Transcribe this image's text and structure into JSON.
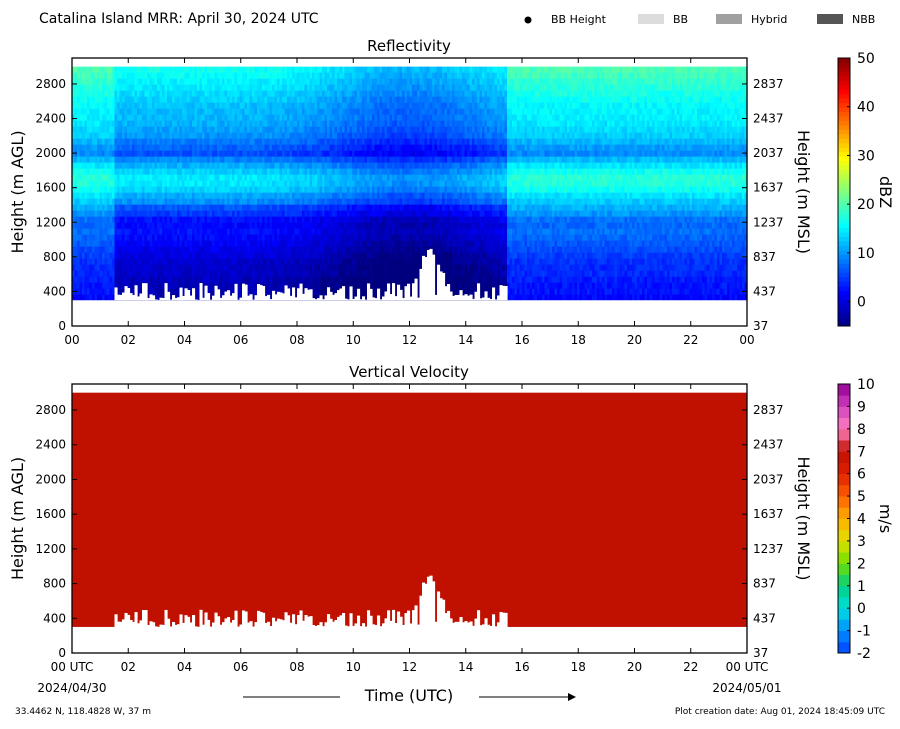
{
  "header": {
    "title": "Catalina Island MRR:  April 30, 2024 UTC",
    "legend": [
      {
        "label": "BB Height",
        "kind": "dot",
        "color": "#000000"
      },
      {
        "label": "BB",
        "kind": "box",
        "color": "#dcdcdc"
      },
      {
        "label": "Hybrid",
        "kind": "box",
        "color": "#a0a0a0"
      },
      {
        "label": "NBB",
        "kind": "box",
        "color": "#555555"
      }
    ]
  },
  "footer": {
    "location": "33.4462 N, 118.4828 W, 37 m",
    "creation": "Plot creation date: Aug 01, 2024 18:45:09 UTC",
    "time_label": "Time (UTC)",
    "start_date": "2024/04/30",
    "end_date": "2024/05/01"
  },
  "chart_data": [
    {
      "type": "heatmap",
      "title": "Reflectivity",
      "ylabel": "Height (m AGL)",
      "y2label": "Height (m MSL)",
      "xlabel": "",
      "x_ticks": [
        "00",
        "02",
        "04",
        "06",
        "08",
        "10",
        "12",
        "14",
        "16",
        "18",
        "20",
        "22",
        "00"
      ],
      "y_ticks": [
        0,
        400,
        800,
        1200,
        1600,
        2000,
        2400,
        2800
      ],
      "y2_ticks": [
        37,
        437,
        837,
        1237,
        1637,
        2037,
        2437,
        2837
      ],
      "xlim": [
        0,
        24
      ],
      "ylim": [
        0,
        3100
      ],
      "data_top": 3000,
      "data_base": 300,
      "colorbar": {
        "label": "dBZ",
        "min": -5,
        "max": 50,
        "ticks": [
          0,
          10,
          20,
          30,
          40,
          50
        ],
        "colors": [
          "#00007f",
          "#0000ff",
          "#0080ff",
          "#00ffff",
          "#80ff80",
          "#ffff00",
          "#ff8000",
          "#ff0000",
          "#7f0000"
        ]
      },
      "profile_by_height": {
        "heights": [
          300,
          400,
          500,
          600,
          700,
          800,
          900,
          1000,
          1100,
          1200,
          1300,
          1400,
          1500,
          1600,
          1700,
          1800,
          1900,
          2000,
          2100,
          2200,
          2300,
          2400,
          2500,
          2600,
          2700,
          2800,
          2900,
          3000
        ],
        "dbz": [
          2,
          3,
          3,
          4,
          4,
          5,
          6,
          7,
          8,
          7,
          10,
          12,
          14,
          17,
          18,
          16,
          13,
          9,
          11,
          13,
          14,
          15,
          15,
          16,
          17,
          18,
          19,
          20
        ]
      },
      "precip_period": [
        1.5,
        15.5
      ],
      "precip_peak": {
        "time": 12.7,
        "height": 880
      }
    },
    {
      "type": "heatmap",
      "title": "Vertical Velocity",
      "ylabel": "Height (m AGL)",
      "y2label": "Height (m MSL)",
      "xlabel": "Time (UTC)",
      "x_ticks": [
        "00 UTC",
        "02",
        "04",
        "06",
        "08",
        "10",
        "12",
        "14",
        "16",
        "18",
        "20",
        "22",
        "00 UTC"
      ],
      "y_ticks": [
        0,
        400,
        800,
        1200,
        1600,
        2000,
        2400,
        2800
      ],
      "y2_ticks": [
        37,
        437,
        837,
        1237,
        1637,
        2037,
        2437,
        2837
      ],
      "xlim": [
        0,
        24
      ],
      "ylim": [
        0,
        3100
      ],
      "data_top": 3000,
      "data_base": 300,
      "fill_value": 6,
      "fill_color": "#c01000",
      "colorbar": {
        "label": "m/s",
        "min": -2,
        "max": 10,
        "ticks": [
          -2,
          -1,
          0,
          1,
          2,
          3,
          4,
          5,
          6,
          7,
          8,
          9,
          10
        ],
        "colors": [
          "#0040ff",
          "#0090ff",
          "#00e0e0",
          "#00d080",
          "#70e000",
          "#e0e000",
          "#ffb000",
          "#ff6000",
          "#e02000",
          "#c01000",
          "#ff80c0",
          "#d040c0",
          "#900090"
        ]
      }
    }
  ]
}
